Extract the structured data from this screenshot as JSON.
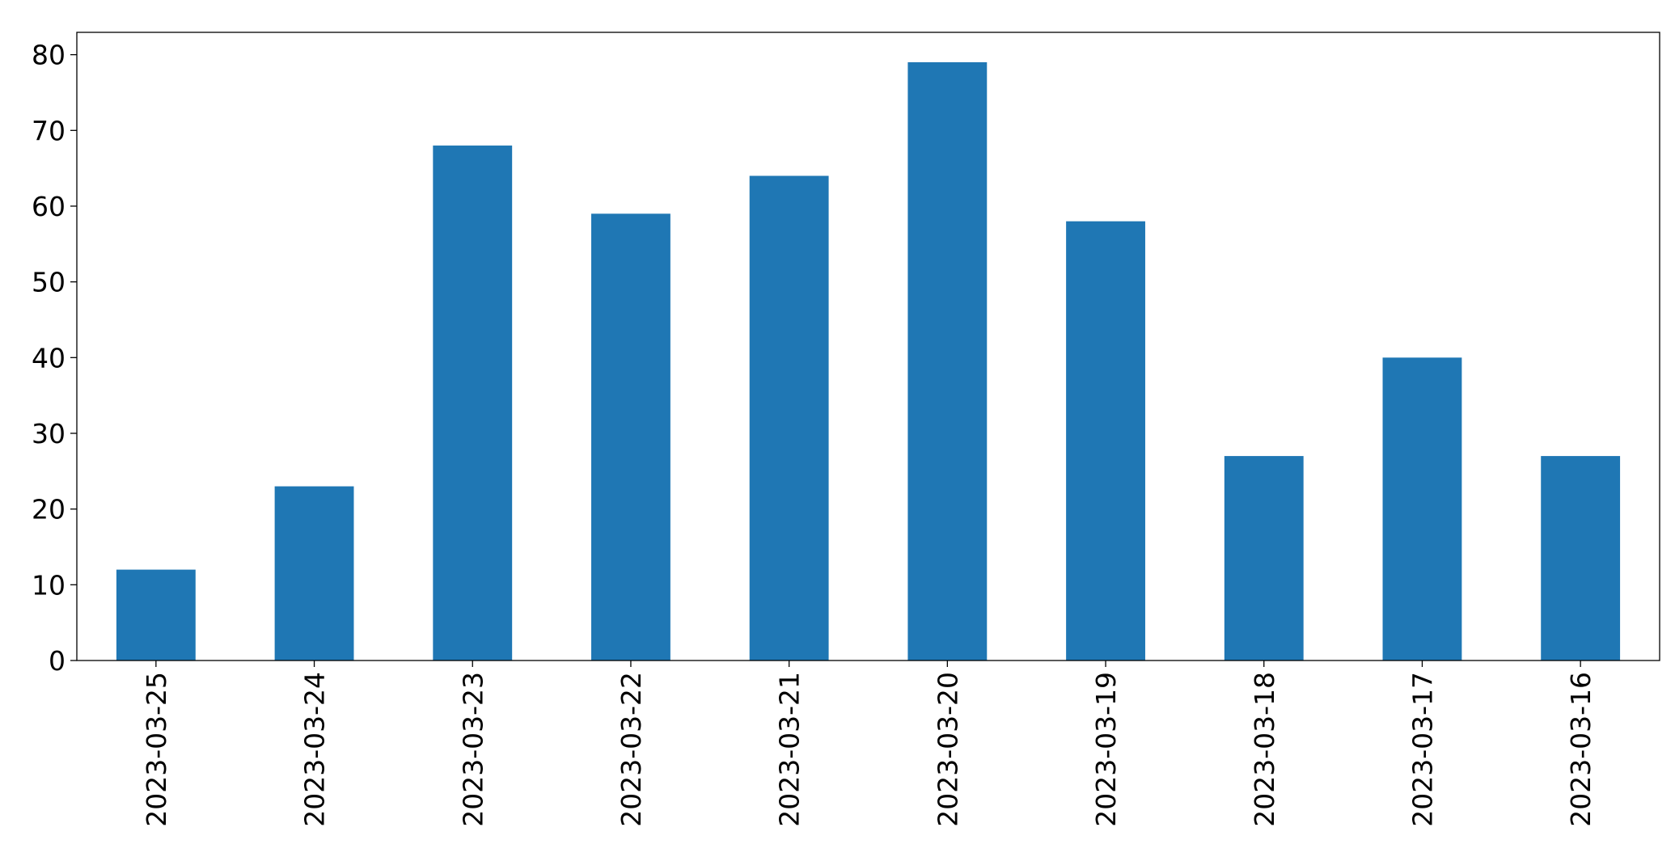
{
  "chart_data": {
    "type": "bar",
    "categories": [
      "2023-03-25",
      "2023-03-24",
      "2023-03-23",
      "2023-03-22",
      "2023-03-21",
      "2023-03-20",
      "2023-03-19",
      "2023-03-18",
      "2023-03-17",
      "2023-03-16"
    ],
    "values": [
      12,
      23,
      68,
      59,
      64,
      79,
      58,
      27,
      40,
      27
    ],
    "color": "#1f77b4",
    "ylim": [
      0,
      82.95
    ],
    "yticks": [
      0,
      10,
      20,
      30,
      40,
      50,
      60,
      70,
      80
    ],
    "grid": false
  }
}
